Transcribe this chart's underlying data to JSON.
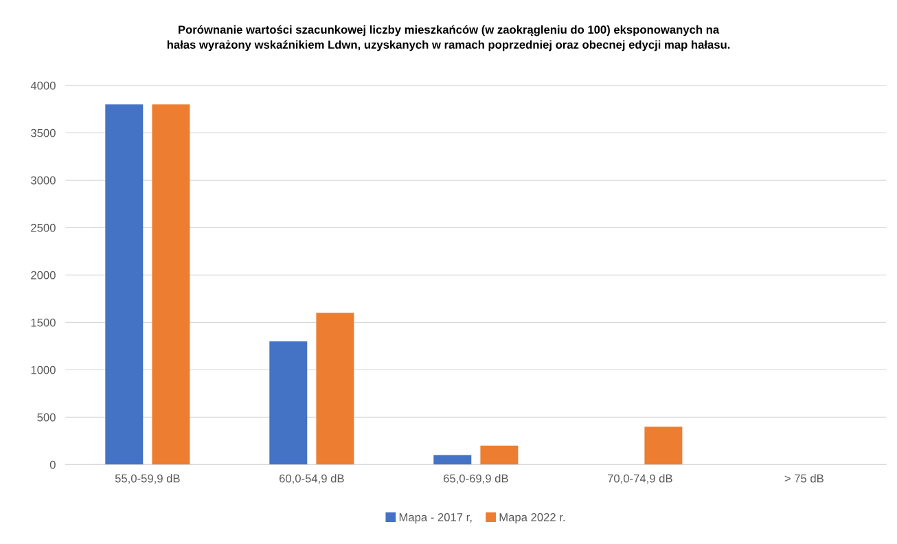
{
  "chart_data": {
    "type": "bar",
    "title": "Porównanie wartości szacunkowej liczby mieszkańców (w zaokrągleniu do 100) eksponowanych na\nhałas wyrażony wskaźnikiem Ldwn, uzyskanych w ramach poprzedniej oraz obecnej edycji map hałasu.",
    "categories": [
      "55,0-59,9 dB",
      "60,0-54,9 dB",
      "65,0-69,9 dB",
      "70,0-74,9 dB",
      "> 75 dB"
    ],
    "series": [
      {
        "name": "Mapa - 2017 r,",
        "color": "#4472c4",
        "values": [
          3800,
          1300,
          100,
          0,
          0
        ]
      },
      {
        "name": "Mapa 2022 r.",
        "color": "#ed7d31",
        "values": [
          3800,
          1600,
          200,
          400,
          0
        ]
      }
    ],
    "ylim": [
      0,
      4000
    ],
    "yticks": [
      0,
      500,
      1000,
      1500,
      2000,
      2500,
      3000,
      3500,
      4000
    ],
    "grid": "y",
    "legend": "bottom"
  }
}
